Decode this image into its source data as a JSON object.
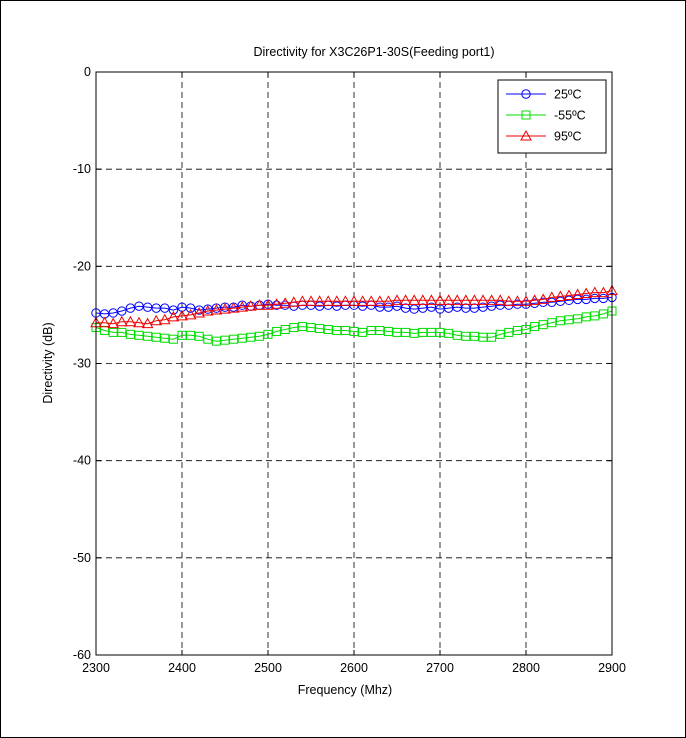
{
  "chart_data": {
    "type": "line",
    "title": "Directivity for X3C26P1-30S(Feeding port1)",
    "xlabel": "Frequency (Mhz)",
    "ylabel": "Directivity (dB)",
    "xlim": [
      2300,
      2900
    ],
    "ylim": [
      -60,
      0
    ],
    "xticks": [
      "2300",
      "2400",
      "2500",
      "2600",
      "2700",
      "2800",
      "2900"
    ],
    "yticks": [
      "0",
      "-10",
      "-20",
      "-30",
      "-40",
      "-50",
      "-60"
    ],
    "grid": true,
    "legend_position": "top-right",
    "x": [
      2300,
      2310,
      2320,
      2330,
      2340,
      2350,
      2360,
      2370,
      2380,
      2390,
      2400,
      2410,
      2420,
      2430,
      2440,
      2450,
      2460,
      2470,
      2480,
      2490,
      2500,
      2510,
      2520,
      2530,
      2540,
      2550,
      2560,
      2570,
      2580,
      2590,
      2600,
      2610,
      2620,
      2630,
      2640,
      2650,
      2660,
      2670,
      2680,
      2690,
      2700,
      2710,
      2720,
      2730,
      2740,
      2750,
      2760,
      2770,
      2780,
      2790,
      2800,
      2810,
      2820,
      2830,
      2840,
      2850,
      2860,
      2870,
      2880,
      2890,
      2900
    ],
    "series": [
      {
        "name": "25ºC",
        "color": "#0000ff",
        "marker": "circle",
        "values": [
          -24.8,
          -24.9,
          -24.8,
          -24.6,
          -24.3,
          -24.1,
          -24.2,
          -24.3,
          -24.3,
          -24.5,
          -24.2,
          -24.3,
          -24.5,
          -24.4,
          -24.3,
          -24.2,
          -24.2,
          -24.0,
          -24.1,
          -24.0,
          -23.9,
          -24.0,
          -24.0,
          -24.1,
          -24.0,
          -24.0,
          -24.1,
          -24.0,
          -24.1,
          -24.0,
          -24.0,
          -24.1,
          -24.0,
          -24.2,
          -24.2,
          -24.1,
          -24.3,
          -24.4,
          -24.3,
          -24.2,
          -24.4,
          -24.3,
          -24.2,
          -24.3,
          -24.3,
          -24.2,
          -24.1,
          -24.0,
          -24.0,
          -23.9,
          -23.9,
          -23.8,
          -23.7,
          -23.7,
          -23.6,
          -23.5,
          -23.4,
          -23.4,
          -23.3,
          -23.3,
          -23.2
        ]
      },
      {
        "name": "-55ºC",
        "color": "#00dd00",
        "marker": "square",
        "values": [
          -26.3,
          -26.6,
          -26.8,
          -26.8,
          -27.0,
          -27.1,
          -27.2,
          -27.3,
          -27.4,
          -27.5,
          -27.1,
          -27.1,
          -27.2,
          -27.5,
          -27.7,
          -27.6,
          -27.5,
          -27.4,
          -27.3,
          -27.2,
          -27.0,
          -26.7,
          -26.5,
          -26.3,
          -26.2,
          -26.3,
          -26.4,
          -26.5,
          -26.6,
          -26.6,
          -26.7,
          -26.8,
          -26.6,
          -26.6,
          -26.7,
          -26.8,
          -26.8,
          -26.9,
          -26.8,
          -26.8,
          -26.8,
          -26.9,
          -27.1,
          -27.2,
          -27.2,
          -27.3,
          -27.3,
          -27.0,
          -26.8,
          -26.6,
          -26.5,
          -26.2,
          -26.0,
          -25.8,
          -25.6,
          -25.5,
          -25.4,
          -25.2,
          -25.1,
          -24.9,
          -24.6
        ]
      },
      {
        "name": "95ºC",
        "color": "#ee0000",
        "marker": "triangle",
        "values": [
          -25.8,
          -25.8,
          -25.9,
          -25.7,
          -25.7,
          -25.8,
          -25.9,
          -25.6,
          -25.5,
          -25.2,
          -25.1,
          -25.0,
          -24.8,
          -24.6,
          -24.5,
          -24.4,
          -24.3,
          -24.2,
          -24.1,
          -24.0,
          -24.0,
          -23.9,
          -23.8,
          -23.7,
          -23.6,
          -23.6,
          -23.6,
          -23.6,
          -23.6,
          -23.6,
          -23.6,
          -23.6,
          -23.6,
          -23.6,
          -23.6,
          -23.5,
          -23.5,
          -23.5,
          -23.5,
          -23.5,
          -23.5,
          -23.5,
          -23.5,
          -23.5,
          -23.5,
          -23.5,
          -23.5,
          -23.5,
          -23.6,
          -23.6,
          -23.6,
          -23.5,
          -23.4,
          -23.2,
          -23.1,
          -23.0,
          -22.9,
          -22.8,
          -22.7,
          -22.7,
          -22.5
        ]
      }
    ]
  }
}
